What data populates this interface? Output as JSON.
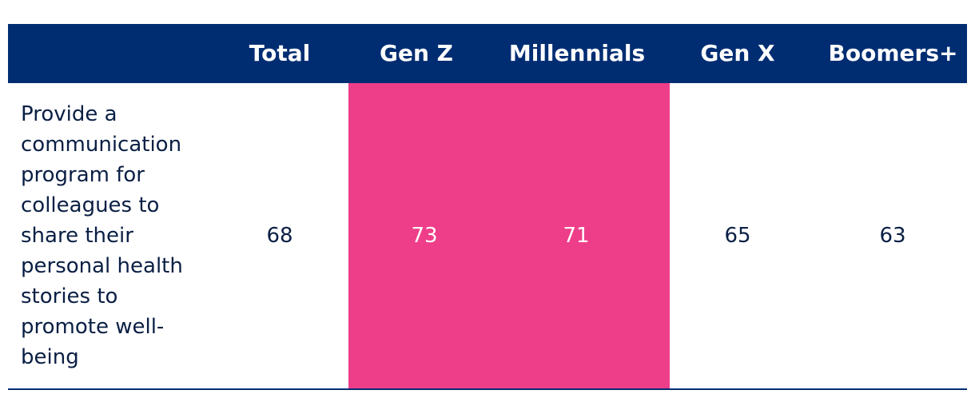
{
  "colors": {
    "header_bg": "#002d72",
    "highlight": "#ee3e8a",
    "text_dark": "#0a1f44",
    "text_light": "#ffffff"
  },
  "chart_data": {
    "type": "table",
    "columns": [
      "Total",
      "Gen Z",
      "Millennials",
      "Gen X",
      "Boomers+"
    ],
    "rows": [
      {
        "label": "Provide a communication program for colleagues to share their personal health stories to promote well-being",
        "values": [
          "68",
          "73",
          "71",
          "65",
          "63"
        ]
      }
    ],
    "highlighted_columns": [
      "Gen Z",
      "Millennials"
    ]
  }
}
